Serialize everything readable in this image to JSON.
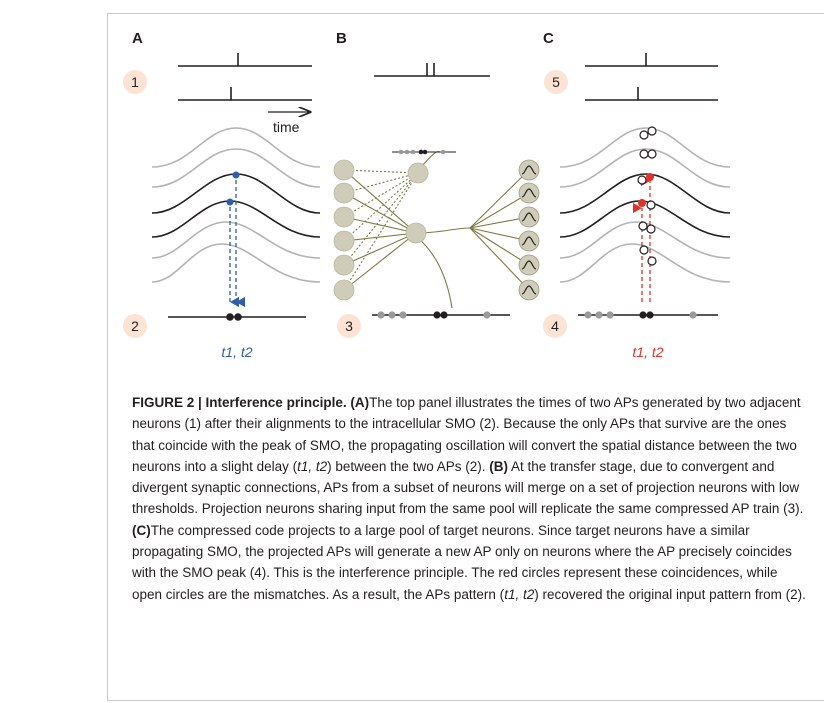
{
  "figure": {
    "panels": [
      {
        "letter": "A",
        "top_number": "1",
        "bottom_number": "2",
        "time_label": "time",
        "spike_label": "t1, t2",
        "spike_label_color": "#2e5fa8"
      },
      {
        "letter": "B",
        "number": "3"
      },
      {
        "letter": "C",
        "top_number": "5",
        "bottom_number": "4",
        "spike_label": "t1, t2",
        "spike_label_color": "#e0312b"
      }
    ],
    "colors": {
      "badge_fill": "#fce3d3",
      "gray_trace": "#b3b3b3",
      "black_trace": "#231f20",
      "blue_marker": "#2e5fa8",
      "red_marker": "#e0312b",
      "olive_line": "#7c7a45",
      "neuron_fill": "#cfcdb9"
    }
  },
  "caption": {
    "head": "FIGURE 2 | Interference principle.",
    "ref_a": "(A)",
    "text_a1": "The top panel illustrates the times of two APs generated by two adjacent neurons (1) after their alignments to the intracellular SMO (2). Because the only APs that survive are the ones that coincide with the peak of SMO, the propagating oscillation will convert the spatial distance between the two neurons into a slight delay (",
    "em_a": "t1, t2",
    "text_a2": ") between the two APs (2). ",
    "ref_b": "(B)",
    "text_b": " At the transfer stage, due to convergent and divergent synaptic connections, APs from a subset of neurons will merge on a set of projection neurons with low thresholds. Projection neurons sharing input from the same pool will replicate the same compressed AP train (3). ",
    "ref_c": "(C)",
    "text_c1": "The compressed code projects to a large pool of target neurons. Since target neurons have a similar propagating SMO, the projected APs will generate a new AP only on neurons where the AP precisely coincides with the SMO peak (4). This is the interference principle. The red circles represent these coincidences, while open circles are the mismatches. As a result, the APs pattern (",
    "em_c": "t1, t2",
    "text_c2": ") recovered the original input pattern from (2)."
  }
}
